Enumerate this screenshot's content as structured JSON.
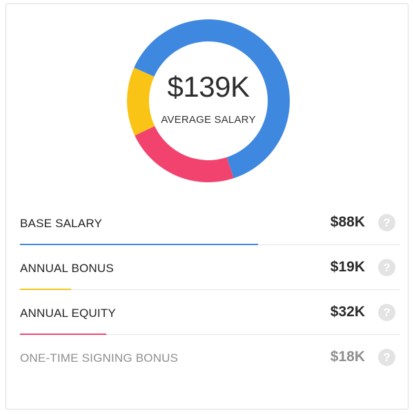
{
  "summary": {
    "total": "$139K",
    "label": "AVERAGE SALARY"
  },
  "components": [
    {
      "label": "BASE SALARY",
      "amount": "$88K",
      "value": 88,
      "color": "#3f88e0",
      "muted": false,
      "icon": "help-icon"
    },
    {
      "label": "ANNUAL BONUS",
      "amount": "$19K",
      "value": 19,
      "color": "#f9c416",
      "muted": false,
      "icon": "help-icon"
    },
    {
      "label": "ANNUAL EQUITY",
      "amount": "$32K",
      "value": 32,
      "color": "#f2436f",
      "muted": false,
      "icon": "help-icon"
    },
    {
      "label": "ONE-TIME SIGNING BONUS",
      "amount": "$18K",
      "value": 18,
      "color": null,
      "muted": true,
      "icon": "help-icon"
    }
  ],
  "donut_segments": [
    {
      "name": "base-salary",
      "value": 88,
      "color": "#3f88e0"
    },
    {
      "name": "annual-equity",
      "value": 32,
      "color": "#f2436f"
    },
    {
      "name": "annual-bonus",
      "value": 19,
      "color": "#f9c416"
    }
  ],
  "help_glyph": "?"
}
